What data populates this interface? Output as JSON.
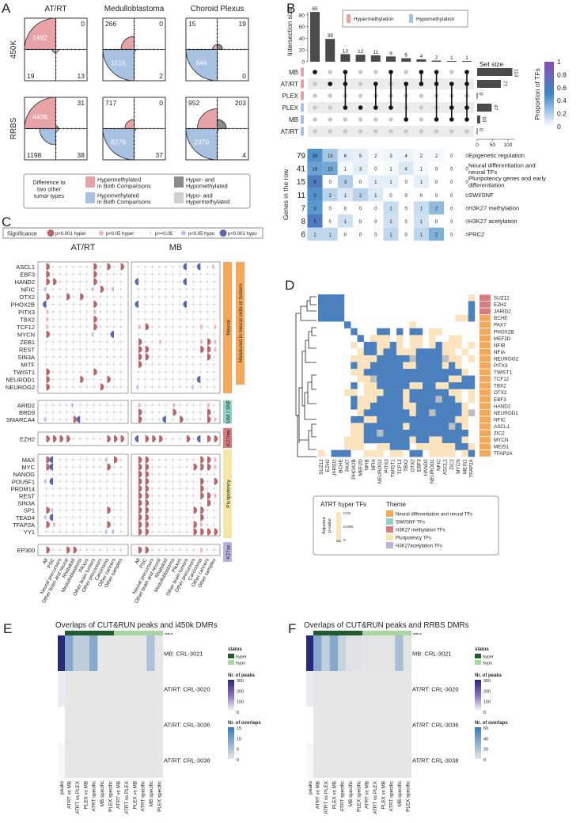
{
  "panel_labels": {
    "a": "A",
    "b": "B",
    "c": "C",
    "d": "D",
    "e": "E",
    "f": "F"
  },
  "chart_data": [
    {
      "type": "quadrant-area",
      "columns": [
        "AT/RT",
        "Medulloblastoma",
        "Choroid Plexus"
      ],
      "rows": [
        "450K",
        "RRBS"
      ],
      "quadrant_order": [
        "hyper_both",
        "hyper_and_hypo",
        "hypo_both",
        "hypo_and_hyper"
      ],
      "cells": [
        [
          [
            1492,
            0,
            19,
            13
          ],
          [
            266,
            0,
            1515,
            2
          ],
          [
            15,
            19,
            646,
            0
          ]
        ],
        [
          [
            4436,
            31,
            1198,
            38
          ],
          [
            717,
            0,
            8279,
            37
          ],
          [
            952,
            203,
            2370,
            4
          ]
        ]
      ],
      "legend": {
        "title_lines": [
          "Difference to",
          "two other",
          "tumor types"
        ],
        "items": [
          {
            "lines": [
              "Hypermethylated",
              "in Both Comparisons"
            ],
            "color": "#e8a3a8"
          },
          {
            "lines": [
              "Hypomethylated",
              "in Both Comparisons"
            ],
            "color": "#a9c1e3"
          },
          {
            "lines": [
              "Hyper- and",
              "Hypomethylated"
            ],
            "color": "#8c8c8c"
          },
          {
            "lines": [
              "Hypo- and",
              "Hypermethylated"
            ],
            "color": "#d0d0d0"
          }
        ]
      }
    },
    {
      "type": "upset",
      "ylabel": "Intersection size",
      "yticks": [
        0,
        20,
        40,
        60,
        80
      ],
      "intersection_sizes": [
        85,
        39,
        13,
        12,
        11,
        9,
        6,
        4,
        2,
        1,
        1
      ],
      "memberships": [
        [
          0
        ],
        [
          1
        ],
        [
          0,
          1,
          3
        ],
        [
          3
        ],
        [
          1,
          3
        ],
        [
          0,
          3
        ],
        [
          1,
          4
        ],
        [
          0,
          1
        ],
        [
          0,
          1,
          4
        ],
        [
          1,
          3,
          4
        ],
        [
          0,
          1,
          3,
          4
        ]
      ],
      "sets": [
        {
          "label": "MB",
          "kind": "hyper",
          "size": 114
        },
        {
          "label": "AT/RT",
          "kind": "hyper",
          "size": 77
        },
        {
          "label": "PLEX",
          "kind": "hyper",
          "size": 0
        },
        {
          "label": "PLEX",
          "kind": "hypo",
          "size": 47
        },
        {
          "label": "MB",
          "kind": "hypo",
          "size": 10
        },
        {
          "label": "AT/RT",
          "kind": "hypo",
          "size": 0
        }
      ],
      "set_size_label": "Set size",
      "set_size_ticks": [
        0,
        50,
        100
      ],
      "legend": {
        "hyper": "Hypermethylation",
        "hypo": "Hypomethylation",
        "hyper_color": "#e8a3a8",
        "hypo_color": "#a9c1e3"
      },
      "colorbar": {
        "title": "Proportion of TFs",
        "ticks": [
          "0",
          "0.2",
          "0.4",
          "0.6",
          "0.8",
          "1"
        ]
      },
      "heatmap_ylabel": "Genes in the row",
      "heatmap_rows": [
        {
          "total": 79,
          "label_lines": [
            "Epigenetic regulation"
          ],
          "values": [
            36,
            19,
            6,
            5,
            2,
            3,
            4,
            2,
            2,
            0,
            0
          ]
        },
        {
          "total": 41,
          "label_lines": [
            "Neural differentiation and",
            "neural TFs"
          ],
          "values": [
            16,
            15,
            1,
            3,
            0,
            1,
            4,
            1,
            0,
            0,
            0
          ]
        },
        {
          "total": 15,
          "label_lines": [
            "Pluripotency genes and early",
            "differentiation"
          ],
          "values": [
            9,
            0,
            3,
            0,
            1,
            1,
            0,
            1,
            0,
            0,
            0
          ]
        },
        {
          "total": 11,
          "label_lines": [
            "SWI/SNF"
          ],
          "values": [
            5,
            2,
            1,
            2,
            1,
            0,
            0,
            0,
            0,
            0,
            0
          ]
        },
        {
          "total": 7,
          "label_lines": [
            "H3K27 methylation"
          ],
          "values": [
            3,
            0,
            0,
            0,
            0,
            1,
            0,
            1,
            2,
            0,
            0
          ]
        },
        {
          "total": 8,
          "label_lines": [
            "H3K27 acetylation"
          ],
          "values": [
            5,
            0,
            1,
            0,
            0,
            1,
            0,
            1,
            0,
            0,
            0
          ]
        },
        {
          "total": 6,
          "label_lines": [
            "PRC2"
          ],
          "values": [
            1,
            1,
            0,
            0,
            0,
            1,
            0,
            1,
            2,
            0,
            0
          ]
        }
      ]
    },
    {
      "type": "dotplot",
      "legend": {
        "title": "Significance",
        "items": [
          {
            "code": "H",
            "label": "p<0.001 hyper"
          },
          {
            "code": "h",
            "label": "p<0.05 hyper"
          },
          {
            "code": ".",
            "label": "p>=0.05"
          },
          {
            "code": "l",
            "label": "p<0.05 hypo"
          },
          {
            "code": "L",
            "label": "p<0.001 hypo"
          }
        ]
      },
      "groups": [
        "AT/RT",
        "MB"
      ],
      "columns": [
        "All",
        "PSC",
        "Neural precursors",
        "Other brain and neural",
        "Rhabdoid",
        "Medulloblastoma",
        "Plexus",
        "Other brain tumors",
        "Other precursors",
        "Carcinoma",
        "Other cancers",
        "Other samples"
      ],
      "extra_bar": {
        "label": "Measured in neural cells or tumors",
        "color": "#f5a85a"
      },
      "sections": [
        {
          "name": "Neural",
          "color": "#f5a85a",
          "rows": [
            {
              "gene": "ASCL1",
              "atrt": "H......H.H.H",
              "mb": ".......L.L.l"
            },
            {
              "gene": "EBF3",
              "atrt": "H......H....",
              "mb": "............"
            },
            {
              "gene": "HAND2",
              "atrt": "HH.....H....",
              "mb": "L......L...."
            },
            {
              "gene": "NFIC",
              "atrt": "l......lH.l.",
              "mb": "............"
            },
            {
              "gene": "OTX2",
              "atrt": "H..H.H......",
              "mb": "............"
            },
            {
              "gene": "PHOX2B",
              "atrt": "L......H....",
              "mb": "L......L...."
            },
            {
              "gene": "PITX3",
              "atrt": "h......h....",
              "mb": "............"
            },
            {
              "gene": "TBX2",
              "atrt": "h......H....",
              "mb": "............"
            },
            {
              "gene": "TCF12",
              "atrt": "h......H....",
              "mb": "hH.......h.h"
            },
            {
              "gene": "MYCN",
              "atrt": "H......l..L.",
              "mb": "............"
            },
            {
              "gene": "ZEB1",
              "atrt": "............",
              "mb": "H..h.....hHh"
            },
            {
              "gene": "REST",
              "atrt": "............",
              "mb": "HH.......HHh"
            },
            {
              "gene": "SIN3A",
              "atrt": "............",
              "mb": "HH........H."
            },
            {
              "gene": "MITF",
              "atrt": "............",
              "mb": "H..........."
            },
            {
              "gene": "TWIST1",
              "atrt": "H......H....",
              "mb": "............"
            },
            {
              "gene": "NEUROD1",
              "atrt": "H....H...H..",
              "mb": ".........L.."
            },
            {
              "gene": "NEUROG2",
              "atrt": "H.......H...",
              "mb": "l.......l..."
            }
          ]
        },
        {
          "name": "SWI / SNF",
          "color": "#8fd3c6",
          "rows": [
            {
              "gene": "ARID2",
              "atrt": "....l.......",
              "mb": "h....h....h."
            },
            {
              "gene": "BRD9",
              "atrt": "............",
              "mb": "H....H....H."
            },
            {
              "gene": "SMARCA4",
              "atrt": "l...HL......",
              "mb": "H...L.H...Hh"
            }
          ]
        },
        {
          "name": "K27me",
          "color": "#d97a7f",
          "rows": [
            {
              "gene": "EZH2",
              "atrt": "HHHH.....HHH",
              "mb": "LHHH...H.LHH"
            }
          ]
        },
        {
          "name": "Pluripotency",
          "color": "#f3e8a8",
          "rows": [
            {
              "gene": "MAX",
              "atrt": "HL.......lH.",
              "mb": "HH.......HHh"
            },
            {
              "gene": "MYC",
              "atrt": "HL.......H..",
              "mb": "HH......HHHh"
            },
            {
              "gene": "NANOG",
              "atrt": "............",
              "mb": "HH.........."
            },
            {
              "gene": "POU5F1",
              "atrt": "lL..........",
              "mb": "HH.......H.H"
            },
            {
              "gene": "PRDM14",
              "atrt": "............",
              "mb": "HH.......H.."
            },
            {
              "gene": "REST",
              "atrt": "............",
              "mb": "HH.......HHh"
            },
            {
              "gene": "SIN3A",
              "atrt": "............",
              "mb": "HH........H."
            },
            {
              "gene": "SP1",
              "atrt": "Hl.......H..",
              "mb": "HH......HH.."
            },
            {
              "gene": "TEAD4",
              "atrt": "lL..........",
              "mb": "HH.......H.."
            },
            {
              "gene": "TFAP2A",
              "atrt": "Hh.......H..",
              "mb": "HH......Hh.."
            },
            {
              "gene": "YY1",
              "atrt": ".........ll.",
              "mb": "HH......HHHH"
            }
          ]
        },
        {
          "name": "K27ac",
          "color": "#b9b3dc",
          "rows": [
            {
              "gene": "EP300",
              "atrt": "H..HH.......",
              "mb": "HH.......h.."
            }
          ]
        }
      ]
    },
    {
      "type": "heatmap",
      "genes": [
        "SUZ12",
        "EZH2",
        "JARID2",
        "BCHE",
        "PAX7",
        "PHOX2B",
        "MEF2D",
        "NFIB",
        "NFIA",
        "NEUROG2",
        "PITX3",
        "TWIST1",
        "TCF12",
        "TBX2",
        "OTX2",
        "EBF3",
        "HAND2",
        "NEUROD1",
        "NFIC",
        "ASCL1",
        "ZIC2",
        "MYCN",
        "MEIS1",
        "TFAP2A"
      ],
      "gene_theme": [
        2,
        2,
        2,
        0,
        0,
        0,
        0,
        0,
        0,
        0,
        0,
        0,
        0,
        0,
        0,
        0,
        0,
        0,
        0,
        0,
        0,
        0,
        0,
        0
      ],
      "cell_codes": {
        "b": "p<0.001",
        "y": "0.001-0.01",
        "g": "intermediate",
        ".": "not significant"
      },
      "matrix": [
        "bbbb...................y",
        "bbbb...................b",
        "bbbb...................b",
        "bbbb.................yyb",
        "....b.........y.........",
        ".....b...bb.b.bb.yy.....",
        "......b.yyy.y.yy.y..yy..",
        ".....y.bbyyby.yy.ybyyy.y",
        "......ybbybbyyybbbbyy.y.",
        ".....yyyybbbbbgbbbbgyy.y",
        ".....byybbbbbyybbbbyby..",
        ".....yybbbbbbbbbbbbbbby.",
        "......yygbbbbbbbbbbbyybb",
        ".....b.yybbbbbyybbyybbbb",
        "....yy.yyybbbybbbbbbyy.y",
        ".....byyybbbbybbbbgbby.y",
        ".....byybbbbbyybbbbbbby.",
        "......ybbbbbbbybbgbbbbyg",
        ".....bbyybbbbbbbbbbbbyy.",
        ".....yybbbbbbybbbbbbgby.",
        ".....yybbgbbbbbbbbbbbbb.",
        "....yyybbbbbbbybbyybbby.",
        "....yyy..yybbb.yyyyyybby",
        "y.bbb..yyy.yy.bb.yyyy.yb"
      ],
      "legend": {
        "title": "ATRT hyper TFs",
        "scale_label_lines": [
          "Adjusted",
          "p-value"
        ],
        "ticks": [
          "0.01",
          "0.005",
          "0"
        ],
        "theme_title": "Theme",
        "themes": [
          {
            "label": "Neural differentiation and neural TFs",
            "color": "#f5a85a"
          },
          {
            "label": "SWI/SNF TFs",
            "color": "#8fd3c6"
          },
          {
            "label": "H3K27 methylation TFs",
            "color": "#d97a7f"
          },
          {
            "label": "Pluripotency TFs",
            "color": "#f3e8a8"
          },
          {
            "label": "H3K27acetylation TFs",
            "color": "#b9b3dc"
          }
        ]
      }
    },
    {
      "type": "heatmap",
      "title": "Overlaps of CUT&RUN peaks and i450k DMRs",
      "columns": [
        "peaks",
        "ATRT vs MB",
        "ATRT vs PLEX",
        "PLEX vs MB",
        "ATRT specific",
        "MB specific",
        "PLEX specific",
        "ATRT vs MB",
        "ATRT vs PLEX",
        "PLEX vs MB",
        "ATRT specific",
        "MB specific",
        "PLEX specific"
      ],
      "status": [
        "hyper",
        "hyper",
        "hyper",
        "hyper",
        "hyper",
        "hyper",
        "hypo",
        "hypo",
        "hypo",
        "hypo",
        "hypo",
        "hypo"
      ],
      "status_bar_label": "status",
      "rows": [
        "MB: CRL-3021",
        "AT/RT: CRL-3020",
        "AT/RT: CRL-3036",
        "AT/RT: CRL-3038"
      ],
      "peaks": [
        300,
        30,
        0,
        10
      ],
      "overlaps": [
        [
          10,
          4,
          4,
          10,
          0,
          0,
          0,
          0,
          0,
          0,
          6,
          0
        ],
        [
          0,
          0,
          0,
          0,
          0,
          0,
          0,
          0,
          0,
          0,
          0,
          0
        ],
        [
          0,
          0,
          0,
          0,
          0,
          0,
          0,
          0,
          0,
          0,
          0,
          0
        ],
        [
          0,
          0,
          0,
          0,
          0,
          0,
          0,
          0,
          0,
          0,
          0,
          0
        ]
      ],
      "legend": {
        "status_title": "status",
        "hyper": "hyper",
        "hypo": "hypo",
        "hyper_color": "#1f5c2e",
        "hypo_color": "#a8d5a2",
        "peaks_title": "Nr. of peaks",
        "peaks_ticks": [
          300,
          200,
          100,
          0
        ],
        "peaks_max": 300,
        "overlaps_title": "Nr. of overlaps",
        "overlaps_ticks": [
          15,
          10,
          5,
          0
        ],
        "overlaps_max": 15
      }
    },
    {
      "type": "heatmap",
      "title": "Overlaps of CUT&RUN peaks and RRBS DMRs",
      "columns": [
        "peaks",
        "ATRT vs MB",
        "ATRT vs PLEX",
        "PLEX vs MB",
        "ATRT specific",
        "MB specific",
        "PLEX specific",
        "ATRT vs MB",
        "ATRT vs PLEX",
        "PLEX vs MB",
        "ATRT specific",
        "MB specific",
        "PLEX specific"
      ],
      "status": [
        "hyper",
        "hyper",
        "hyper",
        "hyper",
        "hyper",
        "hyper",
        "hypo",
        "hypo",
        "hypo",
        "hypo",
        "hypo",
        "hypo"
      ],
      "status_bar_label": "status",
      "rows": [
        "MB: CRL-3021",
        "AT/RT: CRL-3020",
        "AT/RT: CRL-3036",
        "AT/RT: CRL-3038"
      ],
      "peaks": [
        300,
        30,
        0,
        10
      ],
      "overlaps": [
        [
          40,
          15,
          40,
          12,
          3,
          3,
          2,
          2,
          2,
          2,
          25,
          2
        ],
        [
          0,
          0,
          0,
          0,
          0,
          0,
          0,
          0,
          0,
          0,
          0,
          0
        ],
        [
          0,
          0,
          0,
          0,
          0,
          0,
          0,
          0,
          0,
          0,
          0,
          0
        ],
        [
          0,
          0,
          0,
          0,
          0,
          0,
          0,
          0,
          0,
          0,
          0,
          0
        ]
      ],
      "legend": {
        "status_title": "status",
        "hyper": "hyper",
        "hypo": "hypo",
        "hyper_color": "#1f5c2e",
        "hypo_color": "#a8d5a2",
        "peaks_title": "Nr. of peaks",
        "peaks_ticks": [
          300,
          200,
          100,
          0
        ],
        "peaks_max": 300,
        "overlaps_title": "Nr. of overlaps",
        "overlaps_ticks": [
          60,
          40,
          20,
          0
        ],
        "overlaps_max": 60
      }
    }
  ]
}
